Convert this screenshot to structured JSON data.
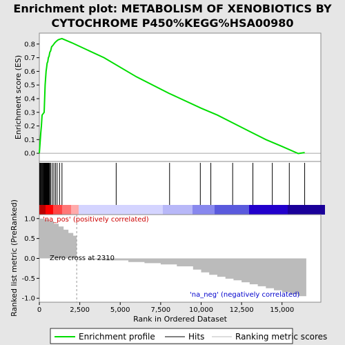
{
  "title_line1": "Enrichment plot: METABOLISM OF XENOBIOTICS BY",
  "title_line2": "CYTOCHROME P450%KEGG%HSA00980",
  "colors": {
    "es_line": "#00dd00",
    "hits": "#000000",
    "pos_label": "#cc0000",
    "neg_label": "#0000cc",
    "metric_fill": "#bbbbbb"
  },
  "labels": {
    "pos": "'na_pos' (positively correlated)",
    "neg": "'na_neg' (negatively correlated)",
    "zero_cross": "Zero cross at 2310"
  },
  "legend": {
    "enrichment": "Enrichment profile",
    "hits": "Hits",
    "metric": "Ranking metric scores"
  },
  "chart_data": [
    {
      "type": "line",
      "name": "enrichment_profile",
      "ylabel": "Enrichment score (ES)",
      "xlim": [
        0,
        17400
      ],
      "ylim": [
        -0.06,
        0.88
      ],
      "yticks": [
        0.0,
        0.1,
        0.2,
        0.3,
        0.4,
        0.5,
        0.6,
        0.7,
        0.8
      ],
      "ytick_labels": [
        "0.0",
        "0.1",
        "0.2",
        "0.3",
        "0.4",
        "0.5",
        "0.6",
        "0.7",
        "0.8"
      ],
      "x": [
        0,
        30,
        60,
        90,
        130,
        170,
        240,
        300,
        330,
        360,
        390,
        420,
        450,
        480,
        520,
        560,
        600,
        650,
        700,
        760,
        840,
        900,
        960,
        1050,
        1150,
        1250,
        1400,
        2000,
        4000,
        6000,
        8000,
        10000,
        11000,
        12000,
        13000,
        14000,
        15000,
        16000,
        16400
      ],
      "y": [
        0.0,
        0.05,
        0.1,
        0.15,
        0.2,
        0.28,
        0.29,
        0.3,
        0.4,
        0.5,
        0.55,
        0.6,
        0.63,
        0.66,
        0.67,
        0.7,
        0.71,
        0.74,
        0.75,
        0.78,
        0.79,
        0.8,
        0.81,
        0.82,
        0.83,
        0.835,
        0.84,
        0.81,
        0.7,
        0.56,
        0.44,
        0.33,
        0.28,
        0.22,
        0.16,
        0.1,
        0.05,
        -0.002,
        0.005
      ],
      "grid": false
    },
    {
      "type": "bar",
      "name": "hits",
      "x": [
        20,
        60,
        100,
        140,
        180,
        220,
        260,
        300,
        330,
        360,
        390,
        420,
        450,
        480,
        510,
        540,
        570,
        600,
        640,
        700,
        800,
        900,
        1000,
        1100,
        1250,
        1400,
        4750,
        8050,
        9950,
        10600,
        11950,
        13200,
        14400,
        15450,
        16400
      ]
    },
    {
      "type": "area",
      "name": "ranking_metric",
      "xlabel": "Rank in Ordered Dataset",
      "ylabel": "Ranked list metric (PreRanked)",
      "xlim": [
        0,
        17400
      ],
      "ylim": [
        -1.1,
        1.1
      ],
      "xticks": [
        0,
        2500,
        5000,
        7500,
        10000,
        12500,
        15000
      ],
      "xtick_labels": [
        "0",
        "2,500",
        "5,000",
        "7,500",
        "10,000",
        "12,500",
        "15,000"
      ],
      "yticks": [
        -1.0,
        -0.5,
        0.0,
        0.5,
        1.0
      ],
      "ytick_labels": [
        "-1.0",
        "-0.5",
        "0.0",
        "0.5",
        "1.0"
      ],
      "x": [
        0,
        300,
        600,
        900,
        1200,
        1500,
        1800,
        2100,
        2300,
        2310,
        3000,
        4000,
        5500,
        6500,
        7500,
        8500,
        9500,
        10000,
        10500,
        11000,
        11500,
        12000,
        12500,
        13000,
        13500,
        14000,
        14500,
        15000,
        15500,
        16000,
        16500
      ],
      "y": [
        1.0,
        0.98,
        0.93,
        0.87,
        0.8,
        0.72,
        0.64,
        0.57,
        0.51,
        0.0,
        -0.03,
        -0.05,
        -0.09,
        -0.12,
        -0.15,
        -0.2,
        -0.28,
        -0.35,
        -0.41,
        -0.46,
        -0.51,
        -0.55,
        -0.6,
        -0.65,
        -0.7,
        -0.75,
        -0.8,
        -0.85,
        -0.9,
        -0.95,
        -1.0
      ],
      "grid": false
    }
  ]
}
